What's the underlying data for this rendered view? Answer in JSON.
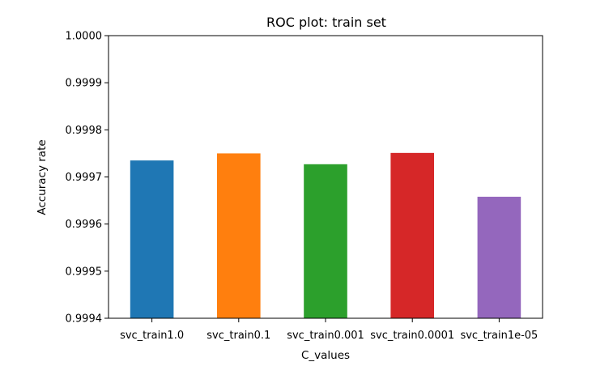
{
  "chart_data": {
    "type": "bar",
    "title": "ROC plot: train set",
    "xlabel": "C_values",
    "ylabel": "Accuracy rate",
    "categories": [
      "svc_train1.0",
      "svc_train0.1",
      "svc_train0.001",
      "svc_train0.0001",
      "svc_train1e-05"
    ],
    "values": [
      0.999735,
      0.99975,
      0.999727,
      0.999751,
      0.999658
    ],
    "colors": [
      "#1f77b4",
      "#ff7f0e",
      "#2ca02c",
      "#d62728",
      "#9467bd"
    ],
    "ylim": [
      0.9994,
      1.0
    ],
    "yticks": [
      0.9994,
      0.9995,
      0.9996,
      0.9997,
      0.9998,
      0.9999,
      1.0
    ],
    "ytick_labels": [
      "0.9994",
      "0.9995",
      "0.9996",
      "0.9997",
      "0.9998",
      "0.9999",
      "1.0000"
    ],
    "grid": false,
    "legend": "none"
  }
}
